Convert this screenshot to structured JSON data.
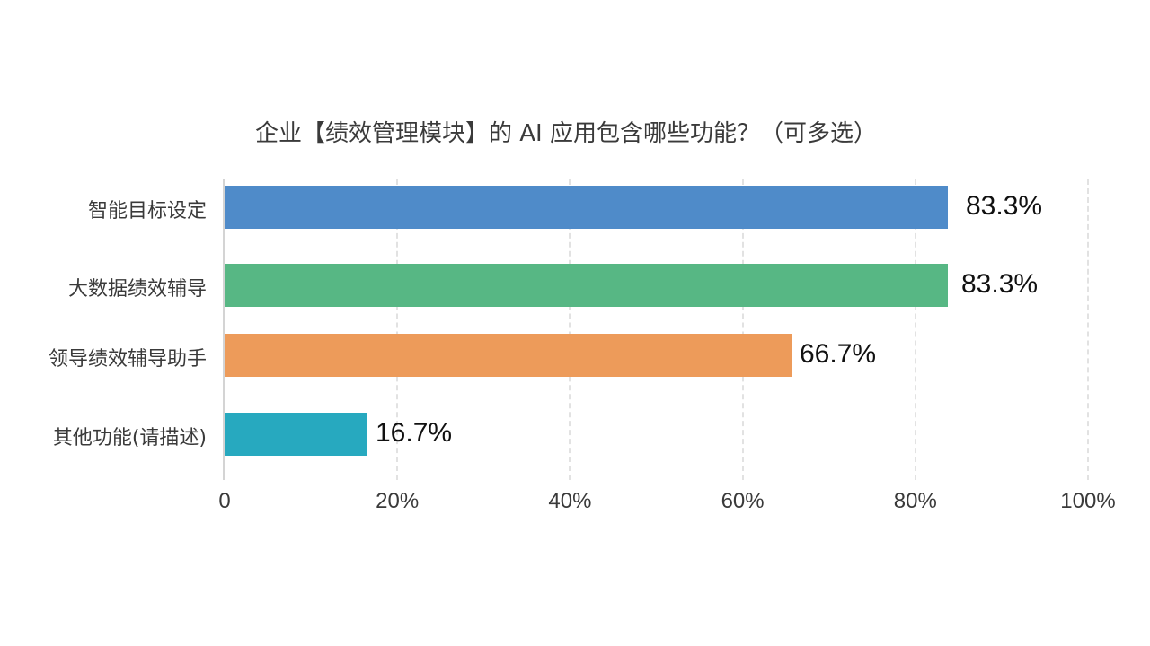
{
  "chart_data": {
    "type": "bar",
    "orientation": "horizontal",
    "title": "企业【绩效管理模块】的 AI 应用包含哪些功能？（可多选）",
    "categories": [
      "智能目标设定",
      "大数据绩效辅导",
      "领导绩效辅导助手",
      "其他功能(请描述)"
    ],
    "values": [
      83.3,
      83.3,
      66.7,
      16.7
    ],
    "value_labels": [
      "83.3%",
      "83.3%",
      "66.7%",
      "16.7%"
    ],
    "colors": [
      "#4f8bc9",
      "#57b784",
      "#ed9b5a",
      "#27a9bf"
    ],
    "xlabel": "",
    "ylabel": "",
    "xlim": [
      0,
      100
    ],
    "xticks": [
      "0",
      "20%",
      "40%",
      "60%",
      "80%",
      "100%"
    ],
    "grid": "vertical dashed",
    "legend": "none"
  }
}
